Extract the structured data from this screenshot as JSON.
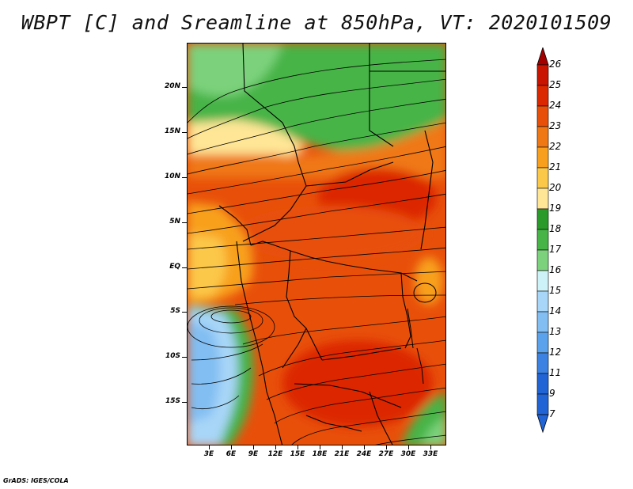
{
  "title": "WBPT [C] and Sreamline at 850hPa, VT: 2020101509",
  "credit": "GrADS: IGES/COLA",
  "map": {
    "lat_ticks": [
      "20N",
      "15N",
      "10N",
      "5N",
      "EQ",
      "5S",
      "10S",
      "15S"
    ],
    "lon_ticks": [
      "3E",
      "6E",
      "9E",
      "12E",
      "15E",
      "18E",
      "21E",
      "24E",
      "27E",
      "30E",
      "33E"
    ]
  },
  "colorbar": {
    "labels": [
      "26",
      "25",
      "24",
      "23",
      "22",
      "21",
      "20",
      "19",
      "18",
      "17",
      "16",
      "15",
      "14",
      "13",
      "12",
      "11",
      "9",
      "7"
    ],
    "colors": [
      "#a40000",
      "#c81400",
      "#dc2800",
      "#e8500a",
      "#f07814",
      "#f8a01e",
      "#fcc84a",
      "#fee696",
      "#2a9a2a",
      "#46b446",
      "#7cd27c",
      "#cdf2f8",
      "#a8d6f8",
      "#82bef2",
      "#5aa2ec",
      "#3c82e2",
      "#2064d6"
    ]
  }
}
